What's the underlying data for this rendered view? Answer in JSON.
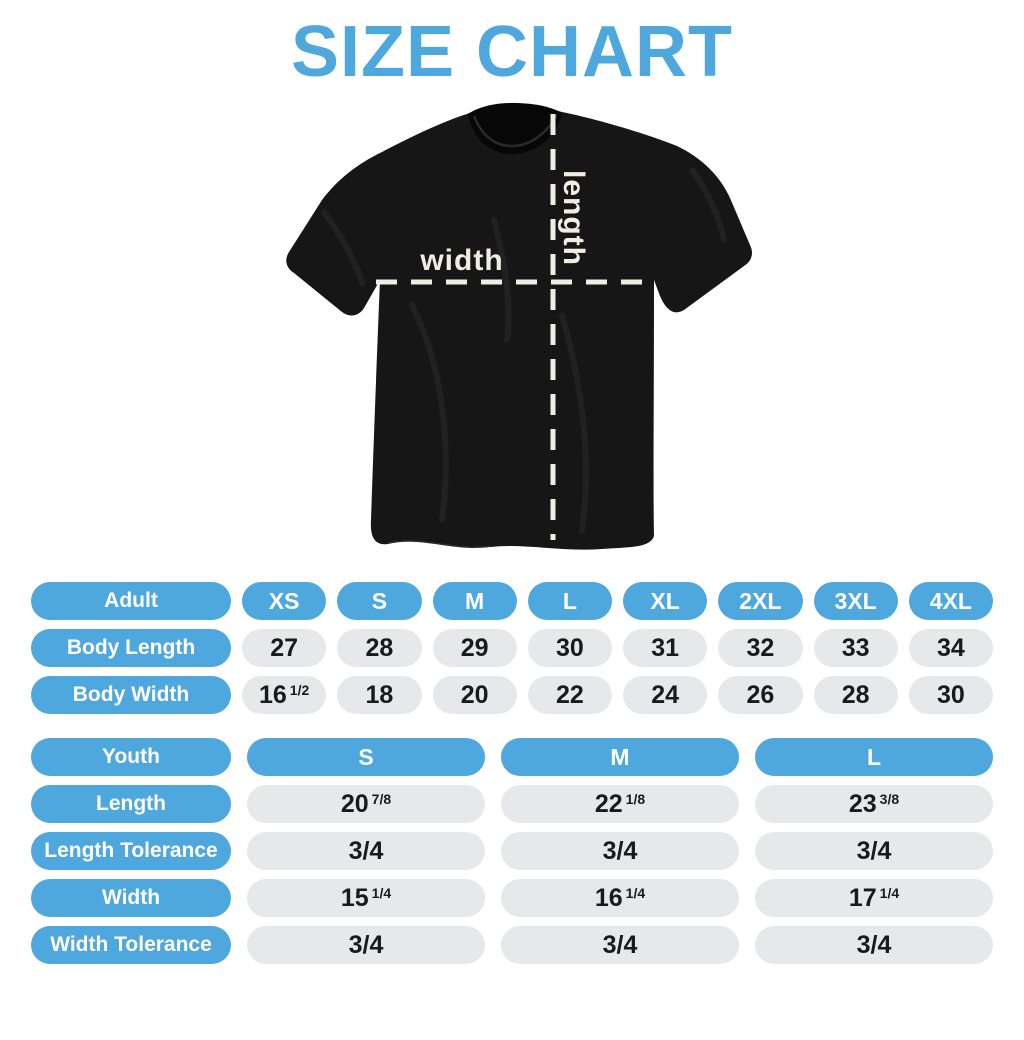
{
  "title": "SIZE CHART",
  "colors": {
    "accent_blue": "#4FA8DD",
    "pill_grey": "#E7E8E9",
    "value_text": "#1A1A1A",
    "measure_cream": "#F2EDE2",
    "shirt_black": "#161616"
  },
  "shirt_diagram": {
    "width_label": "width",
    "length_label": "length"
  },
  "adult_table": {
    "header_label": "Adult",
    "sizes": [
      "XS",
      "S",
      "M",
      "L",
      "XL",
      "2XL",
      "3XL",
      "4XL"
    ],
    "rows": [
      {
        "label": "Body Length",
        "values": [
          {
            "whole": "27"
          },
          {
            "whole": "28"
          },
          {
            "whole": "29"
          },
          {
            "whole": "30"
          },
          {
            "whole": "31"
          },
          {
            "whole": "32"
          },
          {
            "whole": "33"
          },
          {
            "whole": "34"
          }
        ]
      },
      {
        "label": "Body Width",
        "values": [
          {
            "whole": "16",
            "frac": "1/2"
          },
          {
            "whole": "18"
          },
          {
            "whole": "20"
          },
          {
            "whole": "22"
          },
          {
            "whole": "24"
          },
          {
            "whole": "26"
          },
          {
            "whole": "28"
          },
          {
            "whole": "30"
          }
        ]
      }
    ]
  },
  "youth_table": {
    "header_label": "Youth",
    "sizes": [
      "S",
      "M",
      "L"
    ],
    "rows": [
      {
        "label": "Length",
        "values": [
          {
            "whole": "20",
            "frac": "7/8"
          },
          {
            "whole": "22",
            "frac": "1/8"
          },
          {
            "whole": "23",
            "frac": "3/8"
          }
        ]
      },
      {
        "label": "Length Tolerance",
        "values": [
          {
            "whole": "3/4"
          },
          {
            "whole": "3/4"
          },
          {
            "whole": "3/4"
          }
        ]
      },
      {
        "label": "Width",
        "values": [
          {
            "whole": "15",
            "frac": "1/4"
          },
          {
            "whole": "16",
            "frac": "1/4"
          },
          {
            "whole": "17",
            "frac": "1/4"
          }
        ]
      },
      {
        "label": "Width Tolerance",
        "values": [
          {
            "whole": "3/4"
          },
          {
            "whole": "3/4"
          },
          {
            "whole": "3/4"
          }
        ]
      }
    ]
  }
}
